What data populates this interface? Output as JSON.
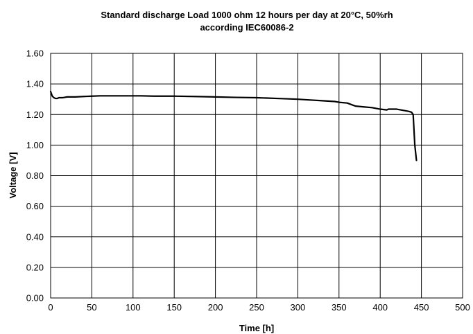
{
  "chart_data": {
    "type": "line",
    "title": "Standard discharge Load 1000 ohm 12 hours per day at 20°C, 50%rh",
    "subtitle": "according IEC60086-2",
    "xlabel": "Time [h]",
    "ylabel": "Voltage [V]",
    "xlim": [
      0,
      500
    ],
    "ylim": [
      0,
      1.6
    ],
    "x_ticks": [
      0,
      50,
      100,
      150,
      200,
      250,
      300,
      350,
      400,
      450,
      500
    ],
    "y_ticks": [
      0.0,
      0.2,
      0.4,
      0.6,
      0.8,
      1.0,
      1.2,
      1.4,
      1.6
    ],
    "x_tick_labels": [
      "0",
      "50",
      "100",
      "150",
      "200",
      "250",
      "300",
      "350",
      "400",
      "450",
      "500"
    ],
    "y_tick_labels": [
      "0.00",
      "0.20",
      "0.40",
      "0.60",
      "0.80",
      "1.00",
      "1.20",
      "1.40",
      "1.60"
    ],
    "grid": true,
    "series": [
      {
        "x": [
          0,
          2,
          4,
          6,
          8,
          10,
          15,
          20,
          30,
          40,
          50,
          60,
          75,
          90,
          100,
          110,
          125,
          140,
          150,
          175,
          200,
          225,
          250,
          275,
          300,
          315,
          330,
          345,
          350,
          360,
          365,
          370,
          380,
          390,
          400,
          408,
          410,
          420,
          430,
          435,
          438,
          440,
          441,
          442,
          443,
          444
        ],
        "y": [
          1.35,
          1.32,
          1.31,
          1.305,
          1.305,
          1.31,
          1.31,
          1.315,
          1.315,
          1.318,
          1.32,
          1.322,
          1.322,
          1.322,
          1.322,
          1.322,
          1.32,
          1.32,
          1.32,
          1.318,
          1.315,
          1.312,
          1.31,
          1.305,
          1.3,
          1.295,
          1.29,
          1.285,
          1.28,
          1.275,
          1.265,
          1.255,
          1.25,
          1.245,
          1.235,
          1.23,
          1.235,
          1.235,
          1.225,
          1.22,
          1.215,
          1.2,
          1.1,
          1.0,
          0.95,
          0.9
        ]
      }
    ]
  }
}
